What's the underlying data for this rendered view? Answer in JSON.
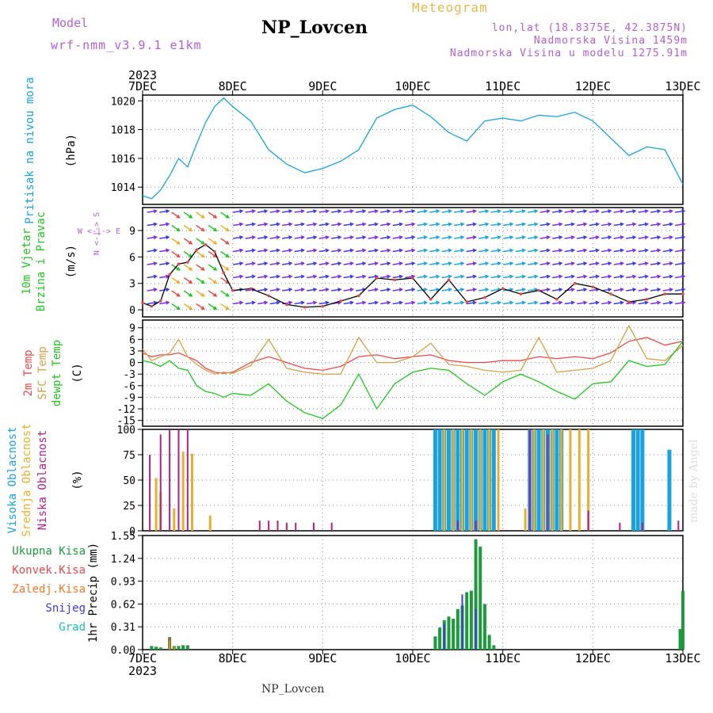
{
  "header": {
    "model_heading": "Model",
    "model_value": "wrf-nmm_v3.9.1  e1km",
    "station_title": "NP_Lovcen",
    "product": "Meteogram",
    "lonlat": "lon,lat (18.8375E, 42.3875N)",
    "altitude": "Nadmorska Visina 1459m",
    "model_altitude": "Nadmorska Visina u modelu 1275.91m"
  },
  "footer": {
    "station": "NP_Lovcen",
    "credit": "made by Angel"
  },
  "colors": {
    "pressure": "#1ba2dc",
    "rh": "#b25fd6",
    "t2m": "#e8484a",
    "sfc": "#d4a04a",
    "dew": "#22c422",
    "high_cloud": "#1ba2dc",
    "mid_cloud": "#e8b02a",
    "low_cloud": "#b0208a",
    "total_precip": "#1e9a3c",
    "conv": "#e8484a",
    "frozen": "#f07a2a",
    "snow": "#3a3ae0",
    "graupel": "#20c0b0"
  },
  "chart_data": [
    {
      "type": "line",
      "panel": "pressure",
      "year": "2023",
      "x_ticks": [
        "7DEC",
        "8DEC",
        "9DEC",
        "10DEC",
        "11DEC",
        "12DEC",
        "13DEC"
      ],
      "ylabel": "Pritisak na nivou mora",
      "yunit": "(hPa)",
      "yticks": [
        1014,
        1016,
        1018,
        1020
      ],
      "ylim": [
        1012.8,
        1020.4
      ],
      "grid": true,
      "x": [
        0,
        0.1,
        0.2,
        0.3,
        0.4,
        0.5,
        0.6,
        0.7,
        0.8,
        0.9,
        1.0,
        1.2,
        1.4,
        1.6,
        1.8,
        2.0,
        2.2,
        2.4,
        2.6,
        2.8,
        3.0,
        3.2,
        3.4,
        3.6,
        3.8,
        4.0,
        4.2,
        4.4,
        4.6,
        4.8,
        5.0,
        5.2,
        5.4,
        5.6,
        5.8,
        6.0
      ],
      "y": [
        1013.4,
        1013.2,
        1013.8,
        1014.8,
        1016.0,
        1015.4,
        1017.0,
        1018.5,
        1019.6,
        1020.2,
        1019.6,
        1018.6,
        1016.6,
        1015.6,
        1015.0,
        1015.3,
        1015.8,
        1016.6,
        1018.8,
        1019.4,
        1019.7,
        1018.9,
        1017.8,
        1017.2,
        1018.6,
        1018.8,
        1018.6,
        1019.0,
        1018.9,
        1019.2,
        1018.6,
        1017.4,
        1016.2,
        1016.8,
        1016.6,
        1014.2
      ]
    },
    {
      "type": "line",
      "panel": "wind",
      "ylabel": "10m Vjetar",
      "ylabel2": "Brzina i Pravac",
      "yunit": "(m/s)",
      "compass": "W <-|-> E",
      "compass_vertical": "N <-|-> S",
      "yticks": [
        0,
        3,
        6,
        9
      ],
      "ylim": [
        -0.8,
        11.6
      ],
      "grid": true,
      "series": [
        {
          "role": "speed",
          "x": [
            0,
            0.1,
            0.2,
            0.3,
            0.4,
            0.5,
            0.6,
            0.7,
            0.8,
            0.9,
            1.0,
            1.2,
            1.4,
            1.6,
            1.8,
            2.0,
            2.2,
            2.4,
            2.6,
            2.8,
            3.0,
            3.2,
            3.4,
            3.6,
            3.8,
            4.0,
            4.2,
            4.4,
            4.6,
            4.8,
            5.0,
            5.2,
            5.4,
            5.6,
            5.8,
            6.0
          ],
          "y": [
            0.8,
            0.4,
            1.0,
            4.0,
            5.2,
            5.4,
            6.8,
            7.4,
            6.6,
            4.2,
            2.2,
            2.4,
            1.6,
            0.6,
            0.3,
            0.4,
            1.0,
            1.6,
            3.6,
            3.4,
            3.6,
            1.2,
            3.4,
            0.9,
            1.4,
            2.4,
            1.8,
            2.2,
            1.2,
            3.0,
            2.6,
            1.8,
            0.9,
            1.2,
            1.8,
            1.8
          ]
        }
      ]
    },
    {
      "type": "line",
      "panel": "temperature",
      "ylabel": "2m Temp",
      "ylabel2": "SFC Temp",
      "ylabel3": "dewpt Temp",
      "yunit": "(C)",
      "yticks": [
        -15,
        -12,
        -9,
        -6,
        -3,
        0,
        3,
        6,
        9
      ],
      "ylim": [
        -16.5,
        11
      ],
      "grid": true,
      "x": [
        0,
        0.1,
        0.2,
        0.3,
        0.4,
        0.5,
        0.6,
        0.7,
        0.8,
        0.9,
        1.0,
        1.2,
        1.4,
        1.6,
        1.8,
        2.0,
        2.2,
        2.4,
        2.6,
        2.8,
        3.0,
        3.2,
        3.4,
        3.6,
        3.8,
        4.0,
        4.2,
        4.4,
        4.6,
        4.8,
        5.0,
        5.2,
        5.4,
        5.6,
        5.8,
        6.0
      ],
      "series": [
        {
          "role": "t2m",
          "y": [
            2.5,
            1.5,
            2.0,
            2.0,
            2.5,
            1.5,
            0.5,
            -1.5,
            -2.5,
            -2.8,
            -2.5,
            0.0,
            1.5,
            0.0,
            -1.5,
            -2.0,
            -1.0,
            1.5,
            2.0,
            1.0,
            1.5,
            2.0,
            0.5,
            0.0,
            0.0,
            0.5,
            0.5,
            1.5,
            1.0,
            1.5,
            1.0,
            2.5,
            5.5,
            6.5,
            4.5,
            5.5
          ]
        },
        {
          "role": "sfc",
          "y": [
            3.5,
            0.5,
            1.5,
            2.5,
            6.0,
            1.5,
            -0.5,
            -2.0,
            -3.0,
            -2.5,
            -2.8,
            -0.8,
            6.0,
            -1.5,
            -2.5,
            -3.0,
            -3.0,
            6.5,
            0.0,
            0.0,
            1.5,
            5.0,
            -0.5,
            -1.0,
            -2.0,
            -2.5,
            -2.0,
            6.5,
            -2.5,
            -2.0,
            -1.5,
            0.5,
            9.5,
            1.0,
            0.5,
            4.5
          ]
        },
        {
          "role": "dew",
          "y": [
            0.5,
            0.0,
            -1.0,
            0.5,
            -1.5,
            -2.0,
            -6.0,
            -7.5,
            -8.0,
            -9.0,
            -8.0,
            -8.5,
            -5.5,
            -10.0,
            -13.0,
            -14.5,
            -11.0,
            -3.0,
            -12.0,
            -5.5,
            -2.5,
            -1.5,
            -2.0,
            -5.5,
            -8.5,
            -5.0,
            -3.0,
            -5.0,
            -7.5,
            -9.5,
            -5.5,
            -5.0,
            0.5,
            -1.0,
            -0.5,
            5.5
          ]
        }
      ]
    },
    {
      "type": "bar",
      "panel": "clouds",
      "ylabel": "Visoka Oblacnost",
      "ylabel2": "Srednja Oblacnost",
      "ylabel3": "Niska Oblacnost",
      "yunit": "(%)",
      "yticks": [
        0,
        25,
        50,
        75,
        100
      ],
      "ylim": [
        0,
        100
      ],
      "grid": true,
      "series": [
        {
          "role": "high",
          "x": [
            3.25,
            3.3,
            3.35,
            3.4,
            3.45,
            3.5,
            3.55,
            3.6,
            3.65,
            3.7,
            3.75,
            3.8,
            3.85,
            3.9,
            4.3,
            4.35,
            4.4,
            4.45,
            4.5,
            4.55,
            4.6,
            4.65,
            5.45,
            5.5,
            5.55,
            5.85
          ],
          "y": [
            100,
            100,
            100,
            100,
            100,
            100,
            100,
            100,
            100,
            100,
            100,
            100,
            100,
            100,
            100,
            100,
            100,
            100,
            100,
            100,
            100,
            100,
            100,
            100,
            100,
            80
          ]
        },
        {
          "role": "mid",
          "x": [
            0.15,
            0.2,
            0.35,
            0.45,
            0.55,
            0.75,
            3.35,
            3.45,
            3.55,
            3.65,
            3.75,
            3.85,
            3.95,
            4.25,
            4.35,
            4.45,
            4.55,
            4.65,
            4.75,
            4.85,
            4.95
          ],
          "y": [
            52,
            38,
            22,
            78,
            76,
            15,
            100,
            100,
            100,
            100,
            100,
            100,
            100,
            22,
            100,
            100,
            100,
            100,
            100,
            100,
            100
          ]
        },
        {
          "role": "low",
          "x": [
            0.08,
            0.2,
            0.3,
            0.4,
            0.5,
            1.3,
            1.4,
            1.5,
            1.6,
            1.7,
            1.9,
            2.1,
            3.5,
            3.7,
            4.3,
            4.5,
            4.95,
            5.3,
            5.55,
            5.95
          ],
          "y": [
            75,
            95,
            100,
            100,
            100,
            10,
            10,
            10,
            8,
            8,
            8,
            8,
            10,
            10,
            100,
            95,
            20,
            8,
            8,
            10
          ]
        }
      ]
    },
    {
      "type": "bar",
      "panel": "precip",
      "ylabel": "1hr Precip (mm)",
      "legend": [
        "Ukupna Kisa",
        "Konvek.Kisa",
        "Zaledj.Kisa",
        "Snijeg",
        "Grad"
      ],
      "yticks": [
        0,
        0.31,
        0.62,
        0.93,
        1.24,
        1.55
      ],
      "ylim": [
        0,
        1.55
      ],
      "grid": true,
      "series": [
        {
          "role": "total",
          "x": [
            0.1,
            0.15,
            0.2,
            0.3,
            0.35,
            0.4,
            0.45,
            0.5,
            3.25,
            3.3,
            3.35,
            3.4,
            3.45,
            3.5,
            3.55,
            3.6,
            3.65,
            3.7,
            3.75,
            3.8,
            3.85,
            3.9,
            5.97,
            6.0
          ],
          "y": [
            0.05,
            0.04,
            0.03,
            0.17,
            0.05,
            0.05,
            0.06,
            0.06,
            0.18,
            0.3,
            0.4,
            0.45,
            0.42,
            0.55,
            0.6,
            0.78,
            0.8,
            1.5,
            1.4,
            0.62,
            0.2,
            0.06,
            0.28,
            0.8
          ]
        },
        {
          "role": "snow",
          "x": [
            3.35,
            3.55,
            3.7
          ],
          "y": [
            0.35,
            0.75,
            0.55
          ]
        },
        {
          "role": "conv",
          "x": [
            0.3
          ],
          "y": [
            0.16
          ]
        },
        {
          "role": "frozen",
          "x": [
            0.3,
            0.35
          ],
          "y": [
            0.12,
            0.05
          ]
        }
      ]
    }
  ]
}
